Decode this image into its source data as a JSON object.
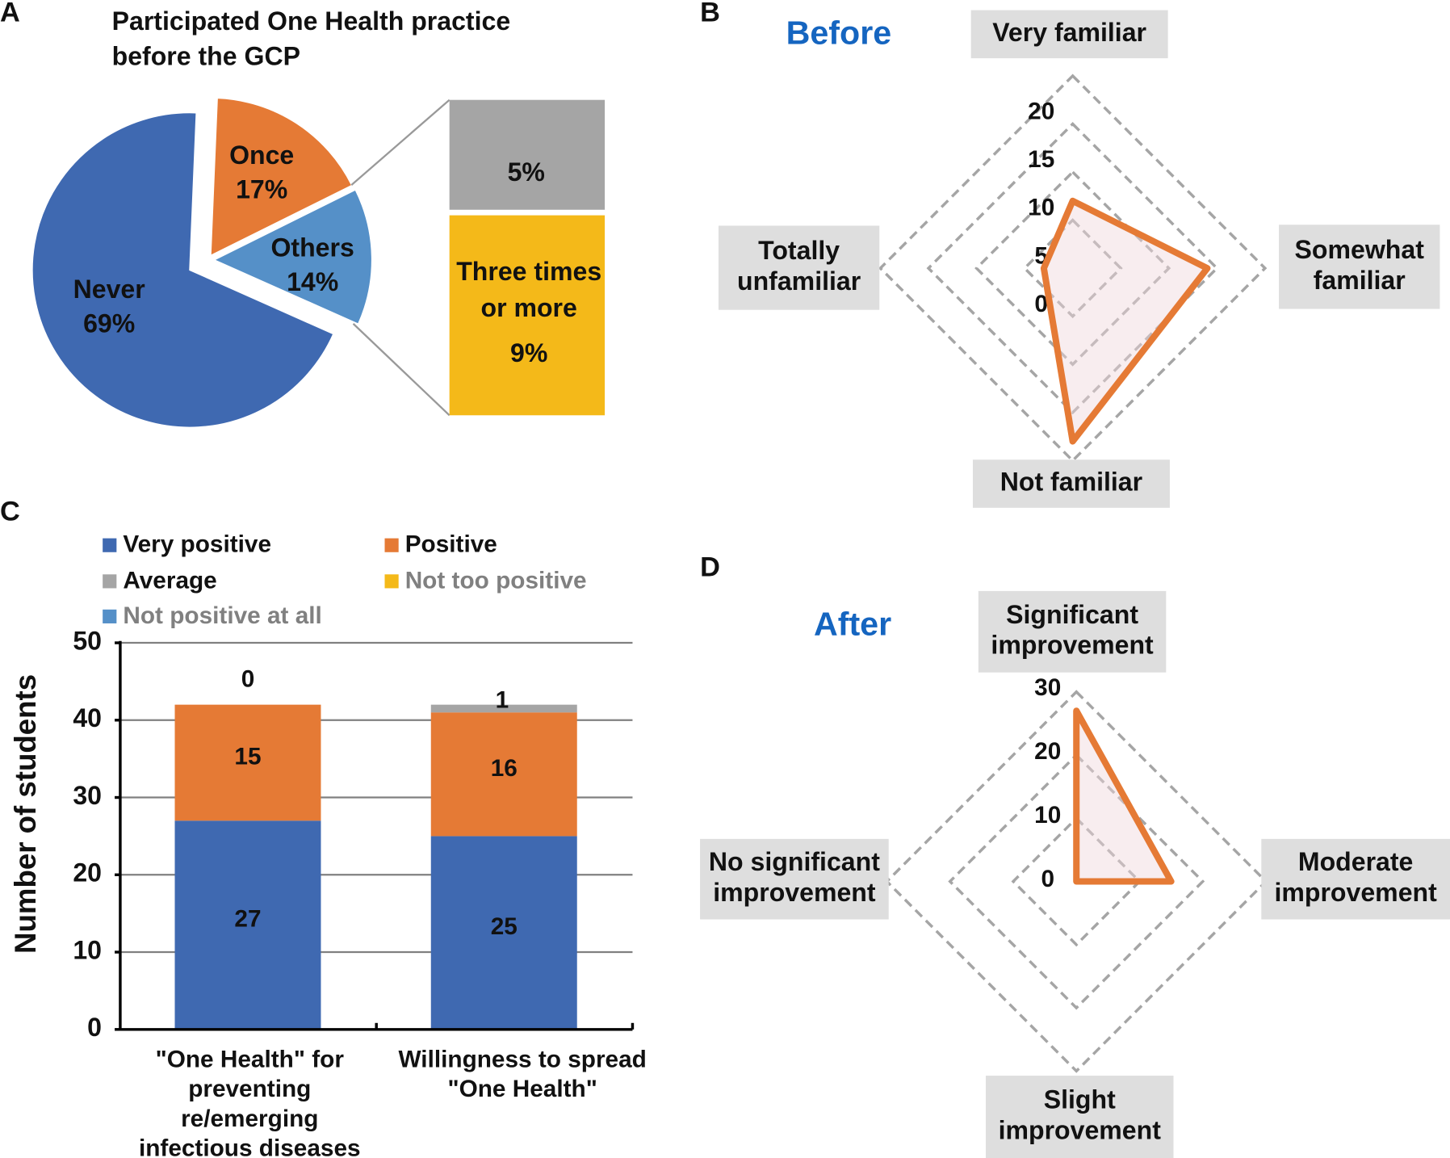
{
  "panel_letters": [
    "A",
    "B",
    "C",
    "D"
  ],
  "colors": {
    "blue": "#3F69B1",
    "orange": "#E57A35",
    "gray": "#A5A5A5",
    "yellow": "#F4B919",
    "lightblue": "#5590C8",
    "title_blue": "#1565C0",
    "label_box": "#DEDEDE"
  },
  "chart_data": [
    {
      "panel": "A",
      "type": "pie",
      "title_lines": [
        "Participated One Health practice",
        "before the GCP"
      ],
      "slices": [
        {
          "name": "Never",
          "value": 69,
          "label": "69%",
          "color": "#3F69B1"
        },
        {
          "name": "Once",
          "value": 17,
          "label": "17%",
          "color": "#E57A35"
        },
        {
          "name": "Others",
          "value": 14,
          "label": "14%",
          "color": "#5590C8"
        }
      ],
      "breakdown_of": "Others",
      "breakdown": [
        {
          "name": "",
          "value": 5,
          "label": "5%",
          "color": "#A5A5A5"
        },
        {
          "name_lines": [
            "Three times",
            "or more"
          ],
          "value": 9,
          "label": "9%",
          "color": "#F4B919"
        }
      ]
    },
    {
      "panel": "B",
      "type": "radar",
      "title": "Before",
      "axes": [
        "Very familiar",
        "Somewhat familiar",
        "Not familiar",
        "Totally unfamiliar"
      ],
      "axis_label_lines": [
        [
          "Very familiar"
        ],
        [
          "Somewhat",
          "familiar"
        ],
        [
          "Not familiar"
        ],
        [
          "Totally",
          "unfamiliar"
        ]
      ],
      "values": [
        7,
        14,
        18,
        3
      ],
      "rmax": 20,
      "ticks": [
        0,
        5,
        10,
        15,
        20
      ]
    },
    {
      "panel": "C",
      "type": "bar",
      "stacked": true,
      "categories": [
        "\"One Health\" for preventing re/emerging infectious diseases",
        "Willingness to spread \"One Health\""
      ],
      "category_label_lines": [
        [
          "\"One Health\" for",
          "preventing",
          "re/emerging",
          "infectious diseases"
        ],
        [
          "Willingness to spread",
          "\"One Health\""
        ]
      ],
      "series": [
        {
          "name": "Very positive",
          "values": [
            27,
            25
          ],
          "color": "#3F69B1",
          "legend_muted": false
        },
        {
          "name": "Positive",
          "values": [
            15,
            16
          ],
          "color": "#E57A35",
          "legend_muted": false
        },
        {
          "name": "Average",
          "values": [
            0,
            1
          ],
          "color": "#A5A5A5",
          "legend_muted": false
        },
        {
          "name": "Not too positive",
          "values": [
            0,
            0
          ],
          "color": "#F4B919",
          "legend_muted": true
        },
        {
          "name": "Not positive at all",
          "values": [
            0,
            0
          ],
          "color": "#5590C8",
          "legend_muted": true
        }
      ],
      "data_labels": [
        [
          "27",
          "15",
          "0"
        ],
        [
          "25",
          "16",
          "1"
        ]
      ],
      "ylabel": "Number of students",
      "ylim": [
        0,
        50
      ],
      "yticks": [
        0,
        10,
        20,
        30,
        40,
        50
      ],
      "grid": true,
      "legend_position": "top"
    },
    {
      "panel": "D",
      "type": "radar",
      "title": "After",
      "axes": [
        "Significant improvement",
        "Moderate improvement",
        "Slight improvement",
        "No significant improvement"
      ],
      "axis_label_lines": [
        [
          "Significant",
          "improvement"
        ],
        [
          "Moderate",
          "improvement"
        ],
        [
          "Slight",
          "improvement"
        ],
        [
          "No significant",
          "improvement"
        ]
      ],
      "values": [
        27,
        15,
        0,
        0
      ],
      "rmax": 30,
      "ticks": [
        0,
        10,
        20,
        30
      ]
    }
  ]
}
